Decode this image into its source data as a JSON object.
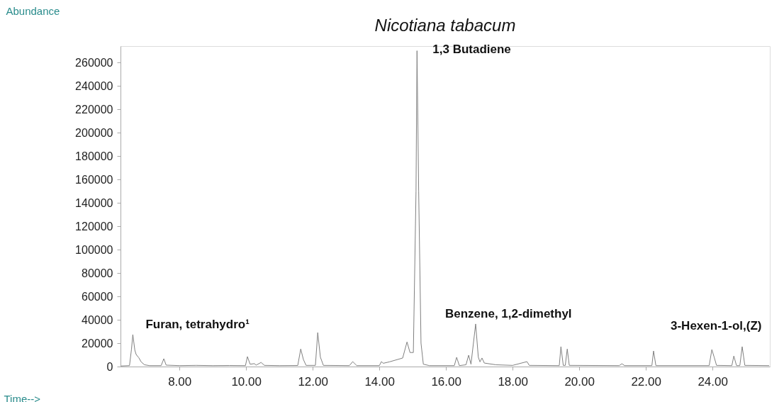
{
  "chart_data": {
    "type": "line",
    "title": "Nicotiana tabacum",
    "xlabel": "Time-->",
    "ylabel": "Abundance",
    "xlim": [
      6.23,
      25.72
    ],
    "ylim": [
      0,
      274000
    ],
    "xticks": [
      {
        "value": 8,
        "label": "8.00"
      },
      {
        "value": 10,
        "label": "10.00"
      },
      {
        "value": 12,
        "label": "12.00"
      },
      {
        "value": 14,
        "label": "14.00"
      },
      {
        "value": 16,
        "label": "16.00"
      },
      {
        "value": 18,
        "label": "18.00"
      },
      {
        "value": 20,
        "label": "20.00"
      },
      {
        "value": 22,
        "label": "22.00"
      },
      {
        "value": 24,
        "label": "24.00"
      }
    ],
    "yticks": [
      0,
      20000,
      40000,
      60000,
      80000,
      100000,
      120000,
      140000,
      160000,
      180000,
      200000,
      220000,
      240000,
      260000
    ],
    "grid": false,
    "marker": "none",
    "line_style": "solid",
    "series": [
      {
        "color": "#808080",
        "x": [
          6.25,
          6.5,
          6.56,
          6.6,
          6.66,
          6.7,
          6.78,
          6.85,
          6.95,
          7.1,
          7.45,
          7.53,
          7.6,
          8.0,
          8.5,
          9.0,
          9.5,
          9.98,
          10.04,
          10.12,
          10.25,
          10.3,
          10.45,
          10.55,
          11.0,
          11.55,
          11.64,
          11.72,
          11.8,
          12.08,
          12.15,
          12.23,
          12.32,
          13.1,
          13.2,
          13.32,
          14.0,
          14.06,
          14.12,
          14.3,
          14.7,
          14.83,
          14.92,
          15.02,
          15.1,
          15.13,
          15.18,
          15.25,
          15.32,
          15.5,
          16.25,
          16.32,
          16.4,
          16.6,
          16.68,
          16.75,
          16.89,
          16.97,
          17.02,
          17.08,
          17.15,
          17.5,
          18.0,
          18.43,
          18.5,
          19.4,
          19.45,
          19.52,
          19.58,
          19.64,
          19.7,
          21.2,
          21.28,
          21.36,
          22.18,
          22.23,
          22.3,
          23.9,
          23.98,
          24.05,
          24.12,
          24.58,
          24.64,
          24.72,
          24.82,
          24.89,
          24.97,
          25.7
        ],
        "values": [
          500,
          800,
          15000,
          27300,
          14000,
          10300,
          7500,
          4000,
          1500,
          800,
          800,
          6700,
          1200,
          800,
          1000,
          800,
          900,
          800,
          8500,
          2000,
          2500,
          1200,
          3500,
          1000,
          800,
          900,
          15000,
          6000,
          1000,
          1000,
          29000,
          8000,
          1000,
          800,
          4200,
          800,
          800,
          4200,
          2800,
          4000,
          7300,
          21000,
          12000,
          12000,
          150000,
          270000,
          150000,
          20000,
          2000,
          800,
          800,
          7900,
          800,
          1500,
          9700,
          2000,
          36400,
          8000,
          4000,
          7300,
          3000,
          1500,
          1000,
          4200,
          1000,
          800,
          17000,
          1000,
          1000,
          15000,
          1000,
          800,
          2400,
          800,
          800,
          13300,
          800,
          800,
          14500,
          8000,
          1000,
          800,
          9000,
          800,
          800,
          17000,
          1000,
          800
        ]
      }
    ],
    "annotations": [
      {
        "text": "Furan, tetrahydro¹",
        "x": 6.6,
        "y": 27300
      },
      {
        "text": "1,3 Butadiene",
        "x": 15.13,
        "y": 270000
      },
      {
        "text": "Benzene, 1,2-dimethyl",
        "x": 16.89,
        "y": 36400
      },
      {
        "text": "3-Hexen-1-ol,(Z)",
        "x": 24.89,
        "y": 17000
      }
    ]
  }
}
